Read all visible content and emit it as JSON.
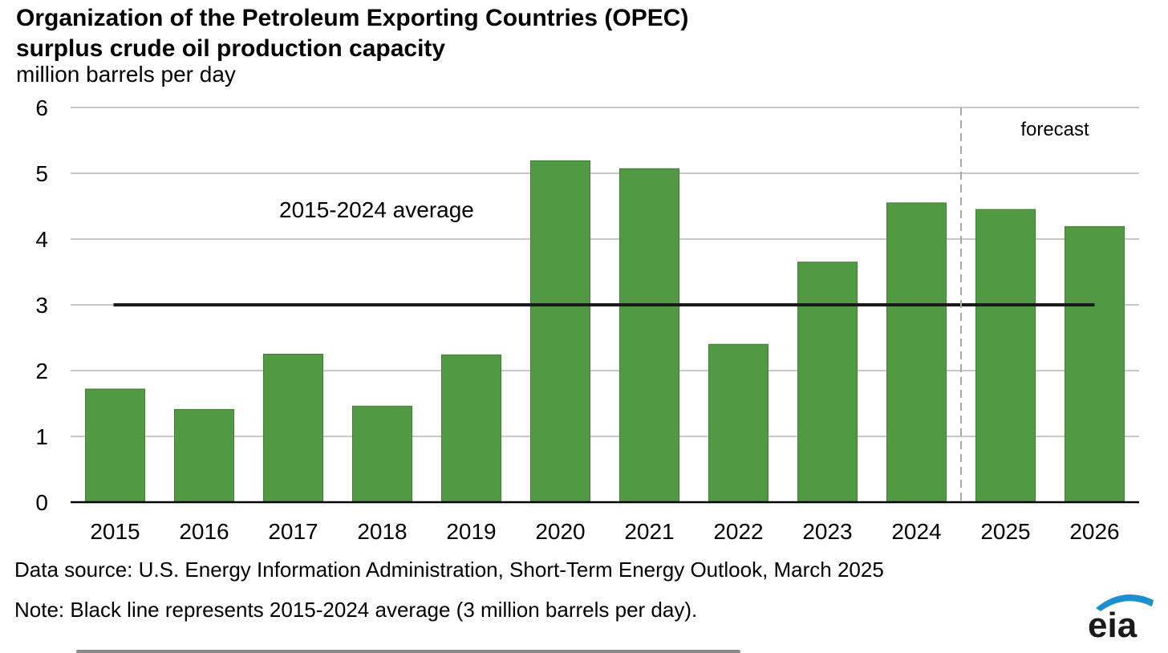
{
  "header": {
    "title_line1": "Organization of the Petroleum Exporting Countries (OPEC)",
    "title_line2": "surplus crude oil production capacity",
    "unit": "million barrels per day"
  },
  "chart_data": {
    "type": "bar",
    "categories": [
      "2015",
      "2016",
      "2017",
      "2018",
      "2019",
      "2020",
      "2021",
      "2022",
      "2023",
      "2024",
      "2025",
      "2026"
    ],
    "values": [
      1.72,
      1.41,
      2.25,
      1.46,
      2.24,
      5.19,
      5.07,
      2.4,
      3.65,
      4.55,
      4.45,
      4.19
    ],
    "ylim": [
      0,
      6
    ],
    "yticks": [
      0,
      1,
      2,
      3,
      4,
      5,
      6
    ],
    "grid": true,
    "bar_color": "#529944",
    "average_line": {
      "value": 3,
      "label": "2015-2024 average",
      "color": "#1a1a1a"
    },
    "forecast": {
      "label": "forecast",
      "starts_after": "2024"
    }
  },
  "footer": {
    "source": "Data source: U.S. Energy Information Administration, Short-Term Energy Outlook, March 2025",
    "note": "Note: Black line represents 2015-2024 average (3 million barrels per day).",
    "logo_text": "eia"
  }
}
